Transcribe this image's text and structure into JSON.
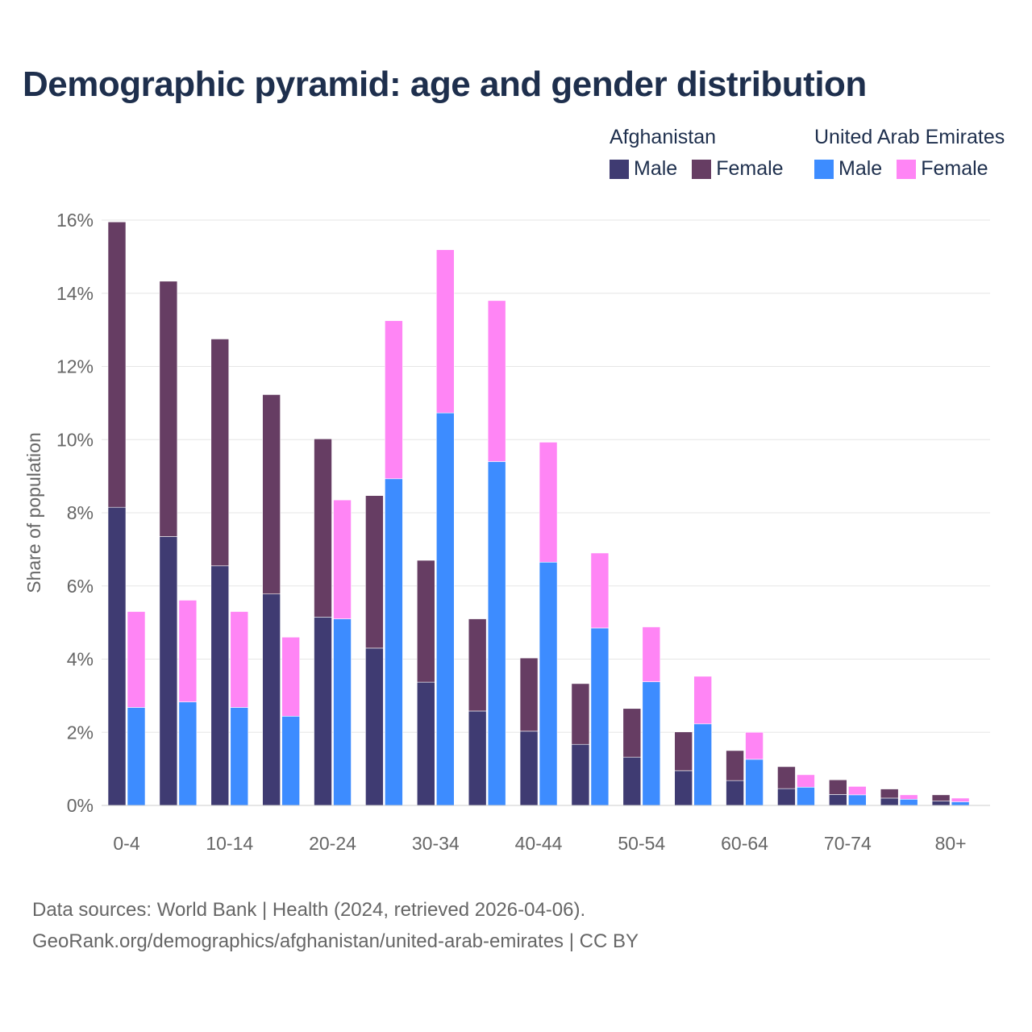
{
  "title": "Demographic pyramid: age and gender distribution",
  "legend": {
    "groups": [
      {
        "heading": "Afghanistan",
        "items": [
          {
            "label": "Male",
            "color": "#3f3b72"
          },
          {
            "label": "Female",
            "color": "#663d63"
          }
        ]
      },
      {
        "heading": "United Arab Emirates",
        "items": [
          {
            "label": "Male",
            "color": "#3d8cff"
          },
          {
            "label": "Female",
            "color": "#ff85f5"
          }
        ]
      }
    ]
  },
  "footer": {
    "line1": "Data sources: World Bank | Health (2024, retrieved 2026-04-06).",
    "line2": "GeoRank.org/demographics/afghanistan/united-arab-emirates | CC BY"
  },
  "chart_data": {
    "type": "bar",
    "stacked": true,
    "ylabel": "Share of population",
    "ylim": [
      0,
      16
    ],
    "yticks": [
      "0%",
      "2%",
      "4%",
      "6%",
      "8%",
      "10%",
      "12%",
      "14%",
      "16%"
    ],
    "categories": [
      "0-4",
      "5-9",
      "10-14",
      "15-19",
      "20-24",
      "25-29",
      "30-34",
      "35-39",
      "40-44",
      "45-49",
      "50-54",
      "55-59",
      "60-64",
      "65-69",
      "70-74",
      "75-79",
      "80+"
    ],
    "xtick_labels": [
      "0-4",
      "",
      "10-14",
      "",
      "20-24",
      "",
      "30-34",
      "",
      "40-44",
      "",
      "50-54",
      "",
      "60-64",
      "",
      "70-74",
      "",
      "80+"
    ],
    "series": [
      {
        "name": "Afghanistan Male",
        "stack": "Afghanistan",
        "color": "#3f3b72",
        "values": [
          8.15,
          7.35,
          6.55,
          5.78,
          5.15,
          4.3,
          3.37,
          2.58,
          2.03,
          1.67,
          1.32,
          0.95,
          0.68,
          0.46,
          0.3,
          0.2,
          0.12
        ]
      },
      {
        "name": "Afghanistan Female",
        "stack": "Afghanistan",
        "color": "#663d63",
        "values": [
          7.8,
          6.98,
          6.2,
          5.45,
          4.87,
          4.17,
          3.33,
          2.52,
          2.0,
          1.66,
          1.33,
          1.06,
          0.82,
          0.6,
          0.4,
          0.25,
          0.17
        ]
      },
      {
        "name": "United Arab Emirates Male",
        "stack": "United Arab Emirates",
        "color": "#3d8cff",
        "values": [
          2.68,
          2.83,
          2.68,
          2.44,
          5.1,
          8.93,
          10.73,
          9.4,
          6.65,
          4.85,
          3.38,
          2.23,
          1.26,
          0.5,
          0.29,
          0.17,
          0.1
        ]
      },
      {
        "name": "United Arab Emirates Female",
        "stack": "United Arab Emirates",
        "color": "#ff85f5",
        "values": [
          2.62,
          2.78,
          2.62,
          2.16,
          3.25,
          4.32,
          4.46,
          4.4,
          3.28,
          2.05,
          1.5,
          1.3,
          0.74,
          0.34,
          0.23,
          0.12,
          0.1
        ]
      }
    ]
  }
}
